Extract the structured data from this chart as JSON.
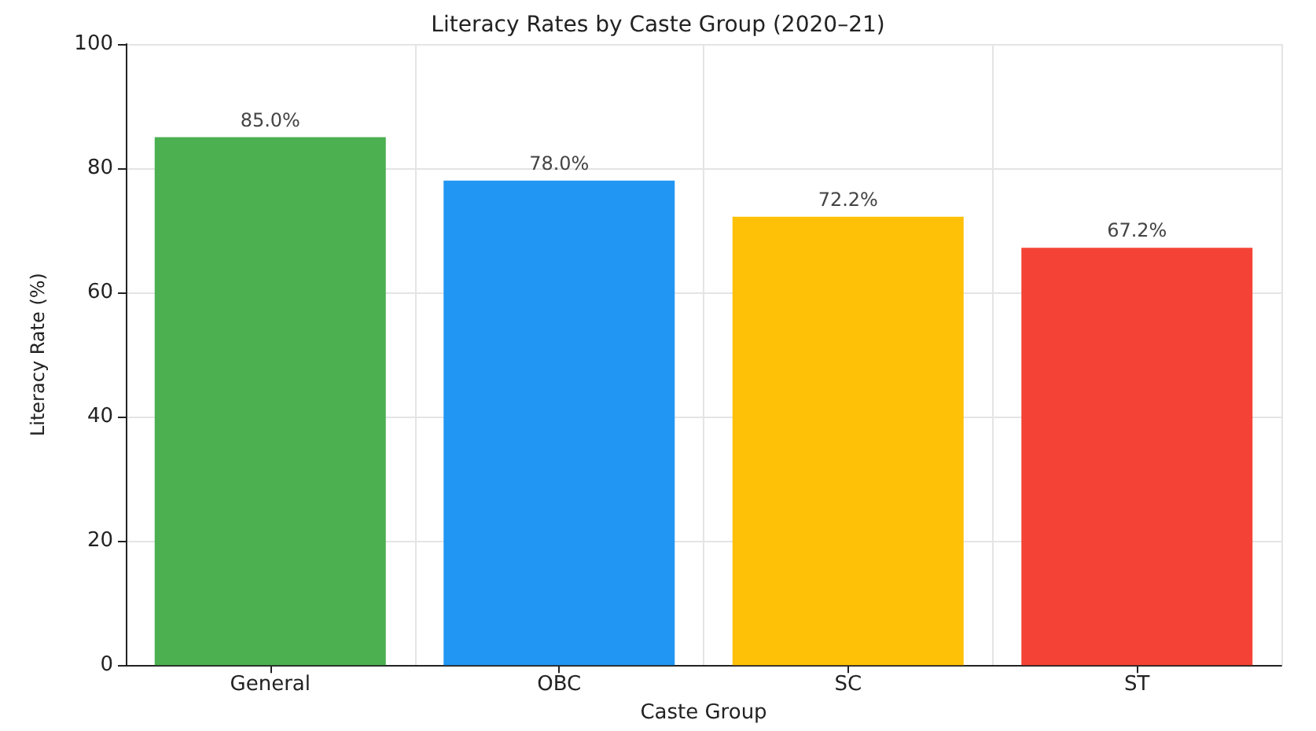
{
  "chart_data": {
    "type": "bar",
    "title": "Literacy Rates by Caste Group (2020–21)",
    "xlabel": "Caste Group",
    "ylabel": "Literacy Rate (%)",
    "categories": [
      "General",
      "OBC",
      "SC",
      "ST"
    ],
    "values": [
      85.0,
      78.0,
      72.2,
      67.2
    ],
    "colors": [
      "#4caf50",
      "#2196f3",
      "#ffc107",
      "#f44336"
    ],
    "value_labels": [
      "85.0%",
      "78.0%",
      "72.2%",
      "67.2%"
    ],
    "ylim": [
      0,
      100
    ],
    "yticks": [
      0,
      20,
      40,
      60,
      80,
      100
    ],
    "grid": true
  }
}
